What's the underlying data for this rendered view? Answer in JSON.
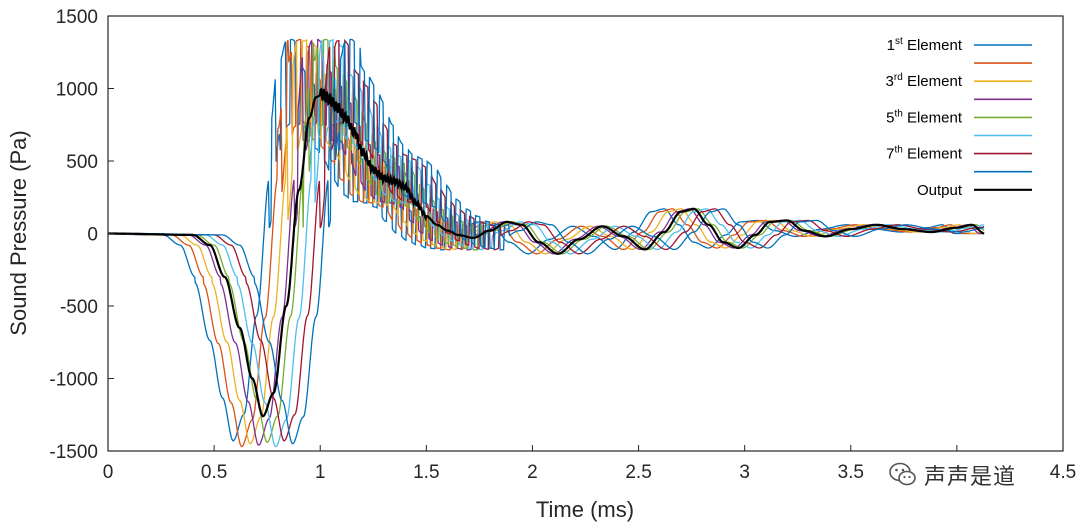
{
  "chart_data": {
    "type": "line",
    "xlabel": "Time (ms)",
    "ylabel": "Sound Pressure (Pa)",
    "xlim": [
      0,
      4.5
    ],
    "ylim": [
      -1500,
      1500
    ],
    "xticks": [
      "0",
      "0.5",
      "1",
      "1.5",
      "2",
      "2.5",
      "3",
      "3.5",
      "4",
      "4.5"
    ],
    "yticks": [
      "-1500",
      "-1000",
      "-500",
      "0",
      "500",
      "1000",
      "1500"
    ],
    "grid": false,
    "legend_position": "top-right",
    "legend": [
      {
        "base": "1",
        "sup": "st",
        "rest": " Element",
        "color": "#0072BD"
      },
      {
        "base": "",
        "sup": "",
        "rest": "",
        "color": "#D95319"
      },
      {
        "base": "3",
        "sup": "rd",
        "rest": " Element",
        "color": "#EDB120"
      },
      {
        "base": "",
        "sup": "",
        "rest": "",
        "color": "#7E2F8E"
      },
      {
        "base": "5",
        "sup": "th",
        "rest": " Element",
        "color": "#77AC30"
      },
      {
        "base": "",
        "sup": "",
        "rest": "",
        "color": "#4DBEEE"
      },
      {
        "base": "7",
        "sup": "th",
        "rest": " Element",
        "color": "#A2142F"
      },
      {
        "base": "",
        "sup": "",
        "rest": "",
        "color": "#0072BD"
      },
      {
        "base": "Output",
        "sup": "",
        "rest": "",
        "color": "#000000"
      }
    ],
    "element_time_offsets_ms": [
      -0.14,
      -0.1,
      -0.06,
      -0.02,
      0.02,
      0.06,
      0.1,
      0.14
    ],
    "element_peak_amplitudes_pa": [
      -1430,
      -1470,
      -1450,
      -1460,
      -1440,
      -1470,
      -1430,
      -1450
    ],
    "output_x": [
      0,
      0.4,
      0.48,
      0.55,
      0.62,
      0.68,
      0.73,
      0.78,
      0.84,
      0.9,
      0.95,
      0.98,
      1.01,
      1.04,
      1.08,
      1.12,
      1.16,
      1.2,
      1.25,
      1.3,
      1.35,
      1.4,
      1.45,
      1.5,
      1.55,
      1.6,
      1.65,
      1.72,
      1.8,
      1.88,
      1.95,
      2.03,
      2.12,
      2.22,
      2.33,
      2.43,
      2.53,
      2.62,
      2.7,
      2.76,
      2.83,
      2.9,
      2.97,
      3.05,
      3.12,
      3.2,
      3.28,
      3.38,
      3.5,
      3.62,
      3.75,
      3.88,
      4.0,
      4.07,
      4.13
    ],
    "output_y": [
      0,
      -10,
      -80,
      -300,
      -650,
      -1000,
      -1260,
      -1100,
      -500,
      300,
      800,
      940,
      960,
      930,
      870,
      800,
      700,
      560,
      440,
      380,
      360,
      320,
      210,
      120,
      60,
      20,
      -10,
      -30,
      20,
      80,
      60,
      -60,
      -140,
      -40,
      50,
      -20,
      -110,
      10,
      150,
      170,
      60,
      -60,
      -100,
      -10,
      80,
      90,
      20,
      -20,
      30,
      60,
      30,
      10,
      40,
      60,
      0
    ]
  },
  "watermark": {
    "text": "声声是道"
  }
}
